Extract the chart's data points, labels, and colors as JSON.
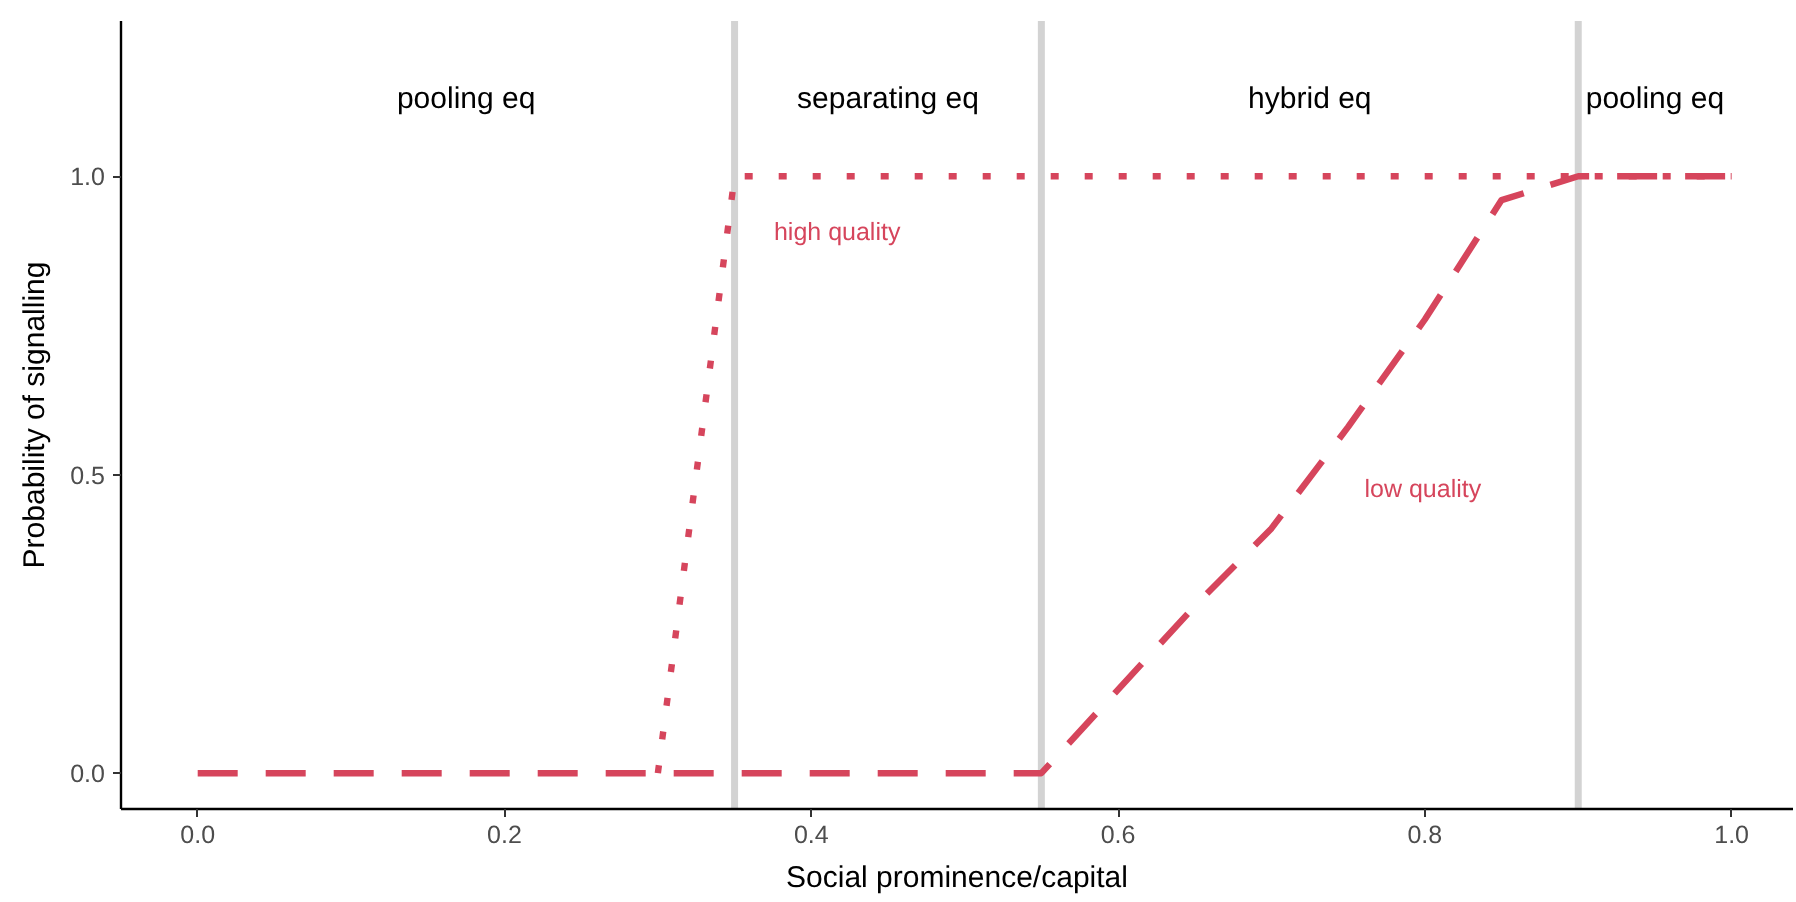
{
  "chart_data": {
    "type": "line",
    "xlabel": "Social prominence/capital",
    "ylabel": "Probability of signalling",
    "xlim": [
      -0.05,
      1.04
    ],
    "ylim": [
      -0.06,
      1.26
    ],
    "xticks": [
      {
        "value": 0,
        "label": "0.0"
      },
      0.2,
      0.4,
      0.6,
      0.8,
      {
        "value": 1,
        "label": "1.0"
      }
    ],
    "yticks": [
      {
        "value": 0,
        "label": "0.0"
      },
      0.5,
      {
        "value": 1,
        "label": "1.0"
      }
    ],
    "grid": false,
    "series": [
      {
        "line_style": "dotted",
        "color": "#d6455c",
        "x": [
          0.3,
          0.35,
          1.0
        ],
        "values": [
          0,
          1,
          1
        ]
      },
      {
        "line_style": "dashed",
        "color": "#d6455c",
        "x": [
          0,
          0.55,
          0.6,
          0.65,
          0.7,
          0.75,
          0.8,
          0.85,
          0.9,
          1.0
        ],
        "values": [
          0,
          0,
          0.14,
          0.28,
          0.41,
          0.58,
          0.76,
          0.96,
          1,
          1
        ]
      }
    ],
    "ref_lines": [
      {
        "axis": "x",
        "value": 0.35,
        "color": "#d3d3d3"
      },
      {
        "axis": "x",
        "value": 0.55,
        "color": "#d3d3d3"
      },
      {
        "axis": "x",
        "value": 0.9,
        "color": "#d3d3d3"
      }
    ],
    "annotations": [
      "pooling eq",
      "separating eq",
      "hybrid eq",
      "pooling eq",
      {
        "text": "high quality",
        "x": 0.36,
        "y": 1
      },
      {
        "text": "low quality",
        "x": 0.745,
        "y": 0.57
      }
    ]
  }
}
